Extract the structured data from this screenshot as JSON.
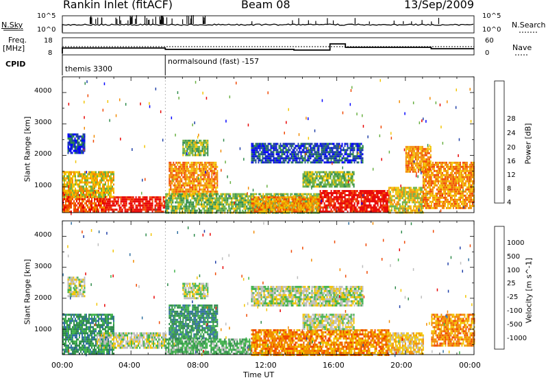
{
  "header": {
    "station": "Rankin Inlet (fitACF)",
    "beam": "Beam 08",
    "date": "13/Sep/2009"
  },
  "strip_labels": {
    "nsky": "N.Sky",
    "nsearch": "N.Search",
    "freq_line1": "Freq.",
    "freq_line2": "[MHz]",
    "nave": "Nave",
    "cpid": "CPID",
    "nsky_ticks": [
      "10^5",
      "10^0"
    ],
    "freq_ticks": [
      "18",
      "8"
    ],
    "nave_ticks": [
      "60",
      "0"
    ]
  },
  "cpid_segments": [
    {
      "name": "themis 3300",
      "start_hour": 0,
      "end_hour": 6
    },
    {
      "name": "normalsound (fast) -157",
      "start_hour": 6,
      "end_hour": 24
    }
  ],
  "axes": {
    "ylabel": "Slant Range [km]",
    "xlabel": "Time UT",
    "yticks": [
      "1000",
      "2000",
      "3000",
      "4000"
    ],
    "xticks": [
      "00:00",
      "04:00",
      "08:00",
      "12:00",
      "16:00",
      "20:00",
      "00:00"
    ]
  },
  "chart_data": [
    {
      "type": "heatmap",
      "title": "Power",
      "xlabel": "Time UT",
      "ylabel": "Slant Range [km]",
      "xlim": [
        0,
        24
      ],
      "ylim": [
        180,
        4500
      ],
      "colorbar": {
        "label": "Power [dB]",
        "ticks": [
          "4",
          "8",
          "12",
          "16",
          "20",
          "24",
          "28"
        ],
        "colors": [
          "#0000ff",
          "#1f3fa8",
          "#2d8a4a",
          "#69b043",
          "#f2c400",
          "#f28a00",
          "#f04800",
          "#e80000"
        ]
      },
      "echo_regions": [
        {
          "t0": 0.0,
          "t1": 2.5,
          "r0": 200,
          "r1": 900,
          "level": 6
        },
        {
          "t0": 2.5,
          "t1": 6.0,
          "r0": 200,
          "r1": 700,
          "level": 7
        },
        {
          "t0": 0.0,
          "t1": 3.0,
          "r0": 700,
          "r1": 1500,
          "level": 4
        },
        {
          "t0": 0.3,
          "t1": 1.3,
          "r0": 2050,
          "r1": 2700,
          "level": 1
        },
        {
          "t0": 6.2,
          "t1": 9.0,
          "r0": 700,
          "r1": 1800,
          "level": 5
        },
        {
          "t0": 7.0,
          "t1": 8.5,
          "r0": 2000,
          "r1": 2500,
          "level": 3
        },
        {
          "t0": 6.0,
          "t1": 15.0,
          "r0": 200,
          "r1": 800,
          "level": 3
        },
        {
          "t0": 11.0,
          "t1": 15.0,
          "r0": 200,
          "r1": 700,
          "level": 5
        },
        {
          "t0": 15.0,
          "t1": 19.0,
          "r0": 200,
          "r1": 900,
          "level": 7
        },
        {
          "t0": 14.0,
          "t1": 17.0,
          "r0": 1000,
          "r1": 1500,
          "level": 3
        },
        {
          "t0": 19.0,
          "t1": 21.0,
          "r0": 200,
          "r1": 1000,
          "level": 4
        },
        {
          "t0": 21.0,
          "t1": 24.0,
          "r0": 300,
          "r1": 1800,
          "level": 5
        },
        {
          "t0": 20.0,
          "t1": 21.5,
          "r0": 1500,
          "r1": 2300,
          "level": 5
        },
        {
          "t0": 11.0,
          "t1": 17.5,
          "r0": 1800,
          "r1": 2400,
          "level": 1
        }
      ]
    },
    {
      "type": "heatmap",
      "title": "Velocity",
      "xlabel": "Time UT",
      "ylabel": "Slant Range [km]",
      "xlim": [
        0,
        24
      ],
      "ylim": [
        180,
        4500
      ],
      "colorbar": {
        "label": "Velocity [m s^-1]",
        "ticks": [
          "1000",
          "500",
          "100",
          "25",
          "-25",
          "-100",
          "-500",
          "-1000"
        ],
        "colors": [
          "#1f3fa8",
          "#2f6fa0",
          "#2d8a4a",
          "#3fb24a",
          "#bdbdbd",
          "#f2c400",
          "#f28a00",
          "#f04800",
          "#e80000"
        ]
      },
      "echo_regions": [
        {
          "t0": 0.0,
          "t1": 3.0,
          "r0": 200,
          "r1": 1500,
          "level": 2
        },
        {
          "t0": 2.0,
          "t1": 6.0,
          "r0": 400,
          "r1": 900,
          "level": 4
        },
        {
          "t0": 0.3,
          "t1": 1.3,
          "r0": 2050,
          "r1": 2700,
          "level": 4
        },
        {
          "t0": 6.2,
          "t1": 9.0,
          "r0": 700,
          "r1": 1800,
          "level": 2
        },
        {
          "t0": 7.0,
          "t1": 8.5,
          "r0": 2000,
          "r1": 2500,
          "level": 4
        },
        {
          "t0": 6.0,
          "t1": 11.0,
          "r0": 200,
          "r1": 700,
          "level": 3
        },
        {
          "t0": 11.0,
          "t1": 19.0,
          "r0": 200,
          "r1": 1000,
          "level": 6
        },
        {
          "t0": 11.0,
          "t1": 17.5,
          "r0": 1800,
          "r1": 2400,
          "level": 4
        },
        {
          "t0": 19.0,
          "t1": 21.0,
          "r0": 200,
          "r1": 900,
          "level": 5
        },
        {
          "t0": 21.5,
          "t1": 24.0,
          "r0": 500,
          "r1": 1500,
          "level": 6
        },
        {
          "t0": 14.0,
          "t1": 17.0,
          "r0": 1000,
          "r1": 1500,
          "level": 4
        }
      ]
    }
  ]
}
